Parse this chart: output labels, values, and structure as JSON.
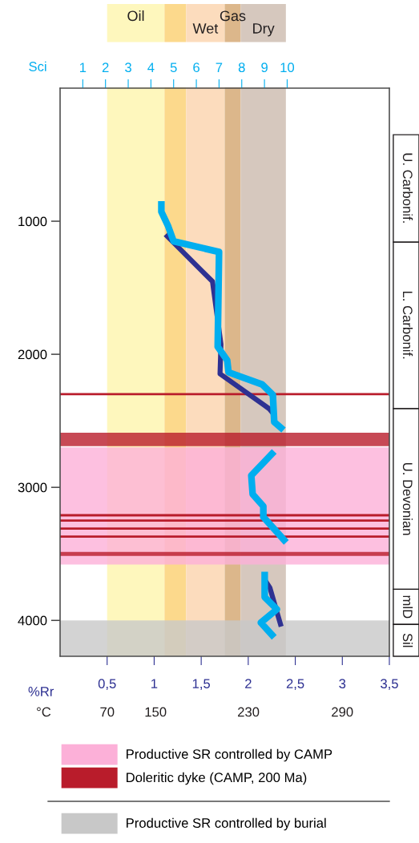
{
  "chart_data": {
    "type": "line",
    "xlabel": "%Rr",
    "x2label": "Sci",
    "annotations": [
      "°C",
      "70",
      "150",
      "230",
      "290",
      "U. Carbonif.",
      "L. Carbonif.",
      "U. Devonian",
      "mlD",
      "Sil"
    ],
    "xlim": [
      0,
      3.5
    ],
    "xticks": [
      {
        "value": 0.5,
        "label": "0,5"
      },
      1,
      {
        "value": 1.5,
        "label": "1,5"
      },
      2,
      {
        "value": 2.5,
        "label": "2,5"
      },
      3,
      {
        "value": 3.5,
        "label": "3,5"
      }
    ],
    "x2lim": [
      0,
      14.5
    ],
    "x2ticks": [
      1,
      2,
      3,
      4,
      5,
      6,
      7,
      8,
      9,
      10
    ],
    "ylim": [
      4270,
      0
    ],
    "yticks": [
      1000,
      2000,
      3000,
      4000
    ],
    "series": [
      {
        "color": "#2e3192",
        "x": [
          1.12,
          1.62,
          1.71,
          1.7,
          2.22,
          2.27,
          null,
          2.18,
          2.23,
          2.35
        ],
        "values": [
          1100,
          1453,
          1925,
          2147,
          2408,
          2450,
          null,
          3700,
          3755,
          4047
        ]
      },
      {
        "color": "#00aeef",
        "axis": "x2",
        "x": [
          4.46,
          4.46,
          4.76,
          5.0,
          7.0,
          6.94,
          7.36,
          7.42,
          8.9,
          9.37,
          9.43,
          9.84,
          null,
          9.43,
          8.42,
          8.48,
          8.95,
          8.95,
          9.96,
          null,
          9.01,
          9.01,
          9.55,
          8.84,
          9.43
        ],
        "values": [
          849,
          929,
          1038,
          1151,
          1231,
          1943,
          2046,
          2136,
          2227,
          2305,
          2509,
          2569,
          null,
          2730,
          2911,
          3052,
          3142,
          3223,
          3414,
          null,
          3635,
          3826,
          3917,
          4017,
          4128
        ]
      }
    ],
    "bands": [
      {
        "axis": "x",
        "from": 0.5,
        "to": 1.11,
        "label": "Oil",
        "color": "#fef7bd"
      },
      {
        "axis": "x",
        "from": 1.11,
        "to": 1.34,
        "color": "#fcd98c"
      },
      {
        "axis": "x",
        "from": 1.34,
        "to": 1.75,
        "label": "Wet",
        "color": "#fcdcbd"
      },
      {
        "axis": "x",
        "from": 1.75,
        "to": 1.92,
        "label": "Gas",
        "color": "#dcb78b"
      },
      {
        "axis": "x",
        "from": 1.92,
        "to": 2.4,
        "label": "Dry",
        "color": "#d6c8be"
      },
      {
        "axis": "y",
        "from": 2700,
        "to": 3580,
        "label": "Productive SR controlled by CAMP",
        "color": "#fcb0d8"
      },
      {
        "axis": "y",
        "from": 2590,
        "to": 2690,
        "label": "Doleritic dyke (CAMP, 200 Ma)",
        "color": "#b91c2b"
      },
      {
        "axis": "y",
        "from": 3485,
        "to": 3515,
        "color": "#b91c2b"
      },
      {
        "axis": "y",
        "from": 4000,
        "to": 4270,
        "label": "Productive SR controlled by burial",
        "color": "#c8c8c8"
      }
    ],
    "ref_lines": [
      {
        "axis": "y",
        "value": 2300,
        "color": "#b91c2b"
      },
      {
        "axis": "y",
        "value": 3210,
        "color": "#b91c2b"
      },
      {
        "axis": "y",
        "value": 3250,
        "color": "#b91c2b"
      },
      {
        "axis": "y",
        "value": 3310,
        "color": "#b91c2b"
      },
      {
        "axis": "y",
        "value": 3370,
        "color": "#b91c2b"
      }
    ],
    "grid": false,
    "legend": "bottom"
  }
}
